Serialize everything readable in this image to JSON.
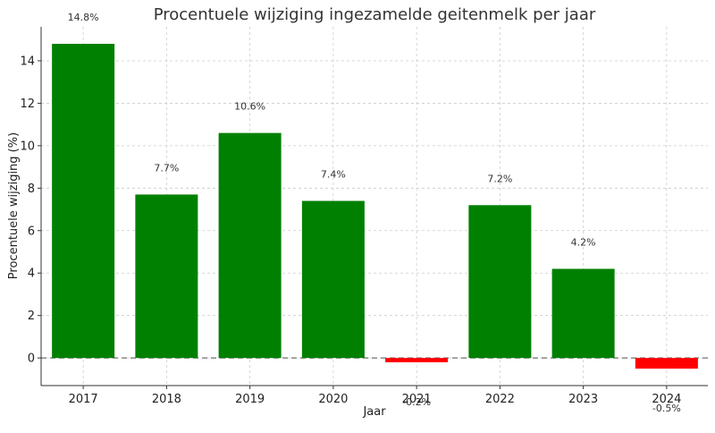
{
  "chart_data": {
    "type": "bar",
    "title": "Procentuele wijziging ingezamelde geitenmelk per jaar",
    "xlabel": "Jaar",
    "ylabel": "Procentuele wijziging (%)",
    "categories": [
      "2017",
      "2018",
      "2019",
      "2020",
      "2021",
      "2022",
      "2023",
      "2024"
    ],
    "values": [
      14.8,
      7.7,
      10.6,
      7.4,
      -0.2,
      7.2,
      4.2,
      -0.5
    ],
    "data_labels": [
      "14.8%",
      "7.7%",
      "10.6%",
      "7.4%",
      "-0.2%",
      "7.2%",
      "4.2%",
      "-0.5%"
    ],
    "yticks": [
      0,
      2,
      4,
      6,
      8,
      10,
      12,
      14
    ],
    "ylim": [
      -1.3,
      15.6
    ],
    "grid": true,
    "colors": {
      "positive": "#008000",
      "negative": "#ff0000",
      "zero_line": "#888888"
    }
  }
}
